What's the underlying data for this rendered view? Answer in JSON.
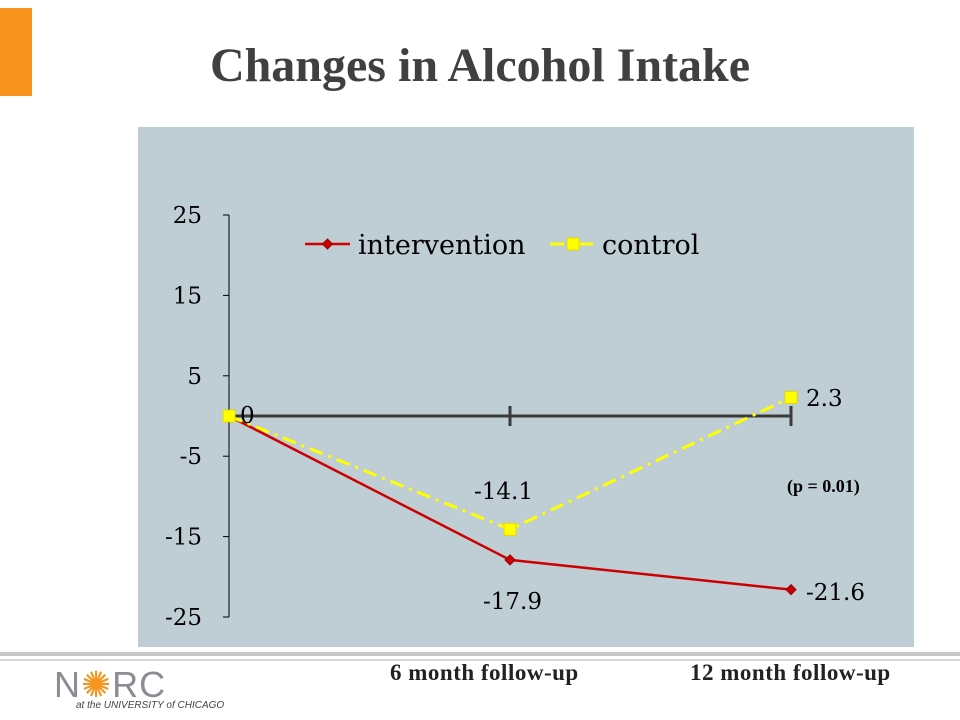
{
  "title": "Changes in Alcohol Intake",
  "colors": {
    "accent": "#f7941e",
    "intervention": "#cc0000",
    "control": "#ffff00",
    "plot_bg": "#bfcdd5"
  },
  "chart_data": {
    "type": "line",
    "categories": [
      "",
      "6 month follow-up",
      "12 month follow-up"
    ],
    "series": [
      {
        "name": "intervention",
        "values": [
          0,
          -17.9,
          -21.6
        ],
        "color": "#cc0000",
        "marker": "diamond",
        "style": "solid"
      },
      {
        "name": "control",
        "values": [
          0,
          -14.1,
          2.3
        ],
        "color": "#ffff00",
        "marker": "square",
        "style": "dash-dot"
      }
    ],
    "data_labels": [
      "0",
      "-14.1",
      "-17.9",
      "2.3",
      "-21.6"
    ],
    "yticks": [
      "25",
      "15",
      "5",
      "-5",
      "-15",
      "-25"
    ],
    "ylim": [
      -25,
      25
    ],
    "legend_position": "top",
    "annotation": "(p = 0.01)",
    "grid": false
  },
  "logo": {
    "name": "NORC",
    "subtitle": "at the UNIVERSITY of CHICAGO"
  }
}
